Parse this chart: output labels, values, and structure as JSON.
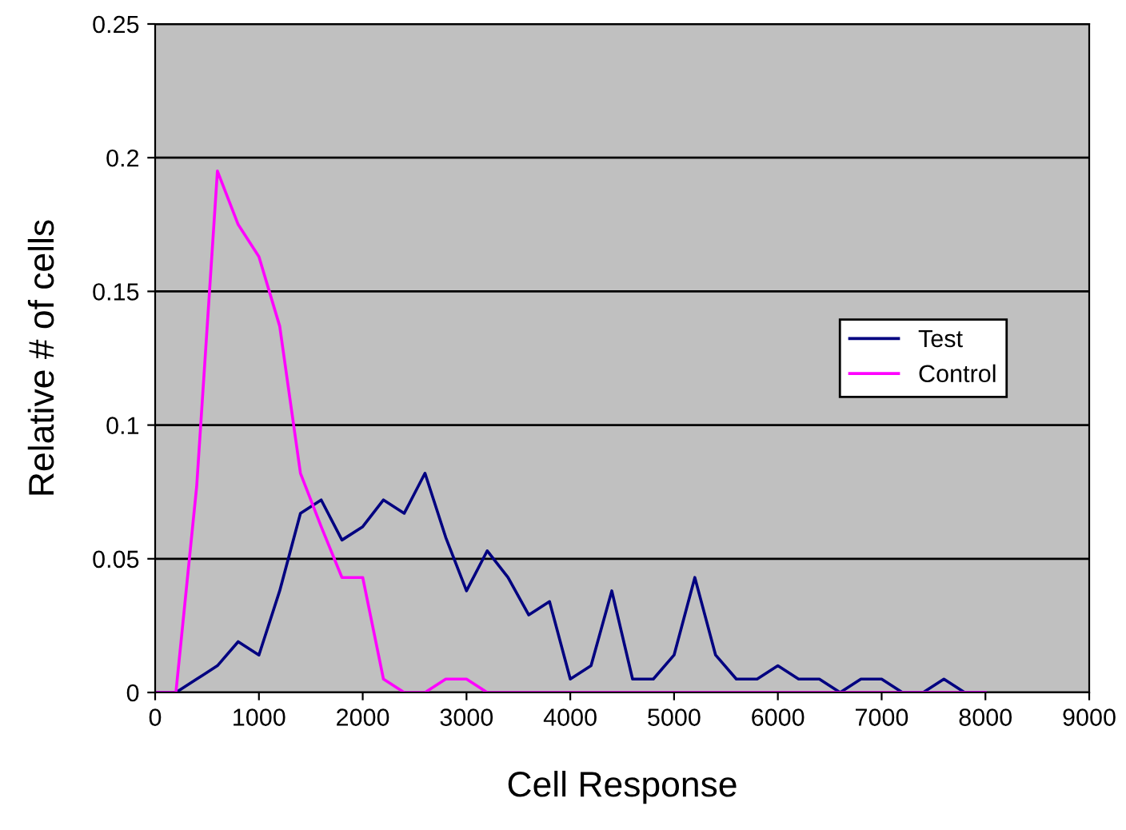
{
  "chart_data": {
    "type": "line",
    "xlabel": "Cell Response",
    "ylabel": "Relative # of cells",
    "x": [
      0,
      200,
      400,
      600,
      800,
      1000,
      1200,
      1400,
      1600,
      1800,
      2000,
      2200,
      2400,
      2600,
      2800,
      3000,
      3200,
      3400,
      3600,
      3800,
      4000,
      4200,
      4400,
      4600,
      4800,
      5000,
      5200,
      5400,
      5600,
      5800,
      6000,
      6200,
      6400,
      6600,
      6800,
      7000,
      7200,
      7400,
      7600,
      7800,
      8000
    ],
    "series": [
      {
        "name": "Test",
        "color": "#000080",
        "values": [
          0,
          0,
          0.005,
          0.01,
          0.019,
          0.014,
          0.038,
          0.067,
          0.072,
          0.057,
          0.062,
          0.072,
          0.067,
          0.082,
          0.058,
          0.038,
          0.053,
          0.043,
          0.029,
          0.034,
          0.005,
          0.01,
          0.038,
          0.005,
          0.005,
          0.014,
          0.043,
          0.014,
          0.005,
          0.005,
          0.01,
          0.005,
          0.005,
          0,
          0.005,
          0.005,
          0,
          0,
          0.005,
          0,
          0
        ]
      },
      {
        "name": "Control",
        "color": "#ff00ff",
        "values": [
          0,
          0,
          0.077,
          0.195,
          0.175,
          0.163,
          0.137,
          0.082,
          0.062,
          0.043,
          0.043,
          0.005,
          0,
          0,
          0.005,
          0.005,
          0,
          0,
          0,
          0,
          0,
          0,
          0,
          0,
          0,
          0,
          0,
          0,
          0,
          0,
          0,
          0,
          0,
          0,
          0,
          0,
          0,
          0,
          0,
          0,
          0
        ]
      }
    ],
    "xlim": [
      0,
      9000
    ],
    "xticks": [
      0,
      1000,
      2000,
      3000,
      4000,
      5000,
      6000,
      7000,
      8000,
      9000
    ],
    "ylim": [
      0,
      0.25
    ],
    "yticks": [
      0,
      0.05,
      0.1,
      0.15,
      0.2,
      0.25
    ],
    "grid": "y",
    "legend": "right",
    "marker": "none",
    "line_style": "solid"
  }
}
